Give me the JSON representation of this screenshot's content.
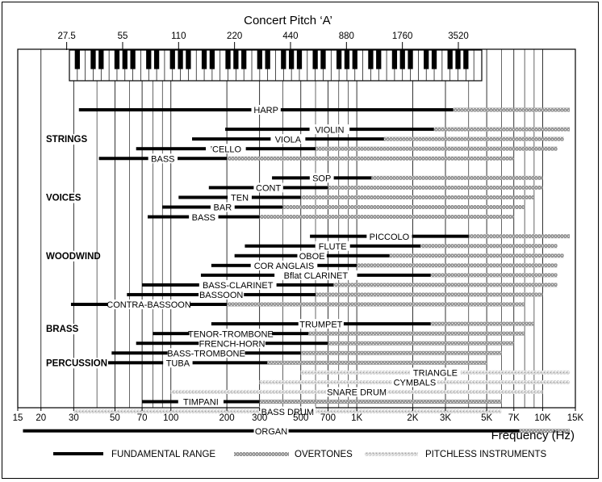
{
  "chart_data": {
    "type": "range",
    "title": "Concert Pitch ‘A’",
    "xlabel": "Frequency (Hz)",
    "x_scale": "log",
    "xlim": [
      15,
      15000
    ],
    "x_ticks": [
      {
        "value": 15,
        "label": "15"
      },
      {
        "value": 20,
        "label": "20"
      },
      {
        "value": 30,
        "label": "30"
      },
      {
        "value": 50,
        "label": "50"
      },
      {
        "value": 70,
        "label": "70"
      },
      {
        "value": 100,
        "label": "100"
      },
      {
        "value": 200,
        "label": "200"
      },
      {
        "value": 300,
        "label": "300"
      },
      {
        "value": 500,
        "label": "500"
      },
      {
        "value": 700,
        "label": "700"
      },
      {
        "value": 1000,
        "label": "1K"
      },
      {
        "value": 2000,
        "label": "2K"
      },
      {
        "value": 3000,
        "label": "3K"
      },
      {
        "value": 5000,
        "label": "5K"
      },
      {
        "value": 7000,
        "label": "7K"
      },
      {
        "value": 10000,
        "label": "10K"
      },
      {
        "value": 15000,
        "label": "15K"
      }
    ],
    "minor_gridlines": [
      40,
      60,
      80,
      90,
      400,
      600,
      800,
      900,
      4000,
      6000,
      8000,
      9000
    ],
    "concert_pitch_a": [
      {
        "value": 27.5,
        "label": "27.5"
      },
      {
        "value": 55,
        "label": "55"
      },
      {
        "value": 110,
        "label": "110"
      },
      {
        "value": 220,
        "label": "220"
      },
      {
        "value": 440,
        "label": "440"
      },
      {
        "value": 880,
        "label": "880"
      },
      {
        "value": 1760,
        "label": "1760"
      },
      {
        "value": 3520,
        "label": "3520"
      }
    ],
    "piano_range": [
      27.5,
      4186
    ],
    "groups": [
      {
        "label": "STRINGS",
        "row": 3
      },
      {
        "label": "VOICES",
        "row": 9
      },
      {
        "label": "WOODWIND",
        "row": 15
      },
      {
        "label": "BRASS",
        "row": 22.5
      },
      {
        "label": "PERCUSSION",
        "row": 26
      }
    ],
    "instruments": [
      {
        "name": "HARP",
        "row": 0,
        "fundamental": [
          32,
          3300
        ],
        "overtones": [
          3300,
          14000
        ]
      },
      {
        "name": "VIOLIN",
        "row": 2,
        "fundamental": [
          196,
          2600
        ],
        "overtones": [
          2600,
          14000
        ]
      },
      {
        "name": "VIOLA",
        "row": 3,
        "fundamental": [
          130,
          1400
        ],
        "overtones": [
          1400,
          13000
        ]
      },
      {
        "name": "’CELLO",
        "row": 4,
        "fundamental": [
          65,
          600
        ],
        "overtones": [
          600,
          12000
        ]
      },
      {
        "name": "BASS",
        "row": 5,
        "fundamental": [
          41,
          200
        ],
        "overtones": [
          200,
          7000
        ]
      },
      {
        "name": "SOP",
        "row": 7,
        "fundamental": [
          350,
          1200
        ],
        "overtones": [
          1200,
          10000
        ]
      },
      {
        "name": "CONT",
        "row": 8,
        "fundamental": [
          160,
          700
        ],
        "overtones": [
          700,
          10000
        ]
      },
      {
        "name": "TEN",
        "row": 9,
        "fundamental": [
          110,
          500
        ],
        "overtones": [
          500,
          9000
        ]
      },
      {
        "name": "BAR",
        "row": 10,
        "fundamental": [
          90,
          400
        ],
        "overtones": [
          400,
          8000
        ]
      },
      {
        "name": "BASS",
        "row": 11,
        "fundamental": [
          75,
          300
        ],
        "overtones": [
          300,
          7000
        ]
      },
      {
        "name": "PICCOLO",
        "row": 13,
        "fundamental": [
          560,
          4000
        ],
        "overtones": [
          4000,
          14000
        ]
      },
      {
        "name": "FLUTE",
        "row": 14,
        "fundamental": [
          250,
          2200
        ],
        "overtones": [
          2200,
          12000
        ]
      },
      {
        "name": "OBOE",
        "row": 15,
        "fundamental": [
          220,
          1500
        ],
        "overtones": [
          1500,
          13000
        ]
      },
      {
        "name": "COR ANGLAIS",
        "row": 16,
        "fundamental": [
          165,
          1000
        ],
        "overtones": [
          1000,
          12000
        ]
      },
      {
        "name": "Bflat CLARINET",
        "row": 17,
        "fundamental": [
          145,
          2500
        ],
        "overtones": [
          2500,
          12000
        ]
      },
      {
        "name": "BASS-CLARINET",
        "row": 18,
        "fundamental": [
          70,
          750
        ],
        "overtones": [
          750,
          12000
        ]
      },
      {
        "name": "BASSOON",
        "row": 19,
        "fundamental": [
          58,
          600
        ],
        "overtones": [
          600,
          10000
        ]
      },
      {
        "name": "CONTRA-BASSOON",
        "row": 20,
        "fundamental": [
          29,
          200
        ],
        "overtones": [
          200,
          8000
        ]
      },
      {
        "name": "TRUMPET",
        "row": 22,
        "fundamental": [
          165,
          2500
        ],
        "overtones": [
          2500,
          9000
        ]
      },
      {
        "name": "TENOR-TROMBONE",
        "row": 23,
        "fundamental": [
          80,
          550
        ],
        "overtones": [
          550,
          8000
        ]
      },
      {
        "name": "FRENCH-HORN",
        "row": 24,
        "fundamental": [
          65,
          700
        ],
        "overtones": [
          700,
          7000
        ]
      },
      {
        "name": "BASS-TROMBONE",
        "row": 25,
        "fundamental": [
          48,
          500
        ],
        "overtones": [
          500,
          6000
        ]
      },
      {
        "name": "TUBA",
        "row": 26,
        "fundamental": [
          36,
          330
        ],
        "overtones": [
          330,
          5000
        ]
      },
      {
        "name": "TRIANGLE",
        "row": 27,
        "pitchless": [
          500,
          14000
        ]
      },
      {
        "name": "CYMBALS",
        "row": 28,
        "pitchless": [
          300,
          14000
        ]
      },
      {
        "name": "SNARE DRUM",
        "row": 29,
        "pitchless": [
          100,
          10000
        ]
      },
      {
        "name": "TIMPANI",
        "row": 30,
        "fundamental": [
          70,
          300
        ],
        "overtones": [
          300,
          6000
        ]
      },
      {
        "name": "BASS DRUM",
        "row": 31,
        "pitchless": [
          30,
          6000
        ]
      },
      {
        "name": "ORGAN",
        "row": 33,
        "fundamental": [
          16,
          7500
        ],
        "overtones": [
          7500,
          14000
        ]
      }
    ],
    "legend": [
      {
        "key": "fundamental",
        "label": "FUNDAMENTAL RANGE"
      },
      {
        "key": "overtones",
        "label": "OVERTONES"
      },
      {
        "key": "pitchless",
        "label": "PITCHLESS INSTRUMENTS"
      }
    ],
    "legend_position": "bottom",
    "colors": {
      "fundamental": "#000000",
      "overtones": "#8e8e8e",
      "pitchless": "#c4c4c4"
    }
  }
}
